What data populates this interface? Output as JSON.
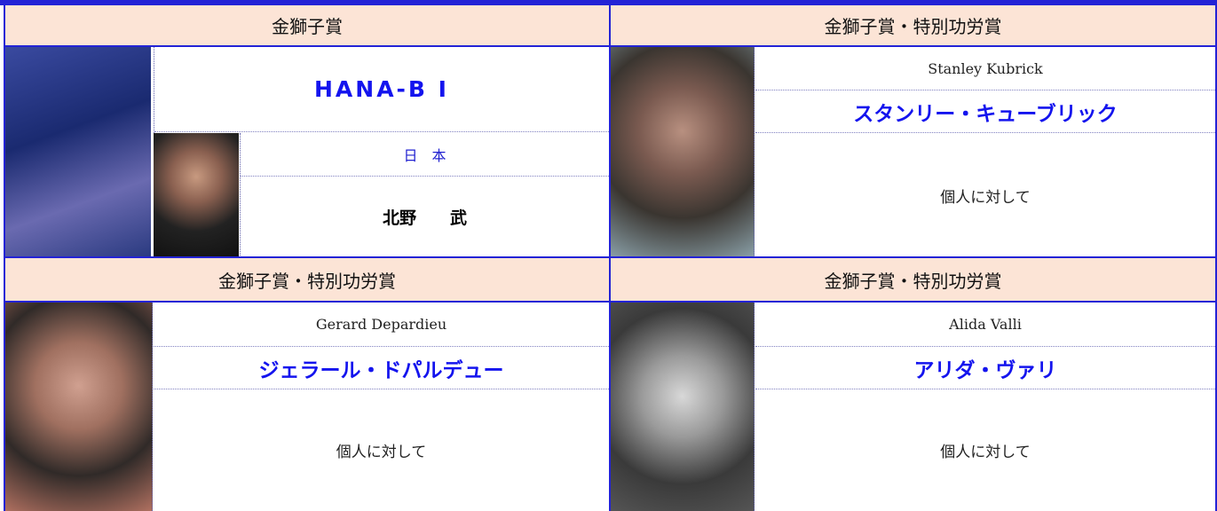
{
  "cells": [
    {
      "award": "金獅子賞",
      "title": "HANA-B I",
      "country": "日　本",
      "director": "北野　　武"
    },
    {
      "award": "金獅子賞・特別功労賞",
      "name_en": "Stanley Kubrick",
      "name_ja": "スタンリー・キューブリック",
      "note": "個人に対して"
    },
    {
      "award": "金獅子賞・特別功労賞",
      "name_en": "Gerard Depardieu",
      "name_ja": "ジェラール・ドパルデュー",
      "note": "個人に対して"
    },
    {
      "award": "金獅子賞・特別功労賞",
      "name_en": "Alida Valli",
      "name_ja": "アリダ・ヴァリ",
      "note": "個人に対して"
    }
  ]
}
